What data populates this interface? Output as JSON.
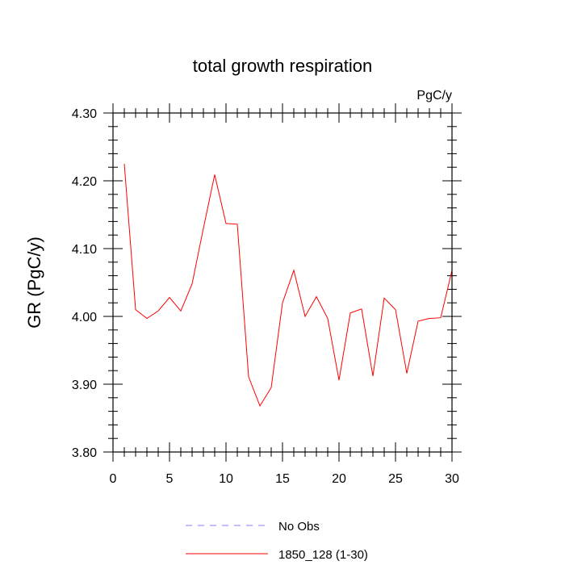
{
  "chart_data": {
    "type": "line",
    "title": "total growth respiration",
    "units": "PgC/y",
    "xlabel": "",
    "ylabel": "GR  (PgC/y)",
    "xlim": [
      0,
      30
    ],
    "ylim": [
      3.8,
      4.3
    ],
    "xticks": [
      0,
      5,
      10,
      15,
      20,
      25,
      30
    ],
    "yticks": [
      "3.80",
      "3.90",
      "4.00",
      "4.10",
      "4.20",
      "4.30"
    ],
    "grid": false,
    "series": [
      {
        "name": "1850_128 (1-30)",
        "color": "#ff0000",
        "style": "solid",
        "x": [
          1,
          2,
          3,
          4,
          5,
          6,
          7,
          8,
          9,
          10,
          11,
          12,
          13,
          14,
          15,
          16,
          17,
          18,
          19,
          20,
          21,
          22,
          23,
          24,
          25,
          26,
          27,
          28,
          29,
          30
        ],
        "values": [
          4.225,
          4.01,
          3.997,
          4.008,
          4.028,
          4.008,
          4.048,
          4.13,
          4.209,
          4.137,
          4.136,
          3.911,
          3.868,
          3.895,
          4.02,
          4.068,
          4.0,
          4.029,
          3.997,
          3.906,
          4.005,
          4.011,
          3.912,
          4.027,
          4.01,
          3.916,
          3.993,
          3.997,
          3.998,
          4.068
        ]
      },
      {
        "name": "No Obs",
        "color": "#8080ff",
        "style": "dashed",
        "x": [],
        "values": []
      }
    ],
    "legend": [
      {
        "label": "No Obs",
        "color": "#8080ff",
        "style": "dashed"
      },
      {
        "label": "1850_128 (1-30)",
        "color": "#ff0000",
        "style": "solid"
      }
    ]
  }
}
